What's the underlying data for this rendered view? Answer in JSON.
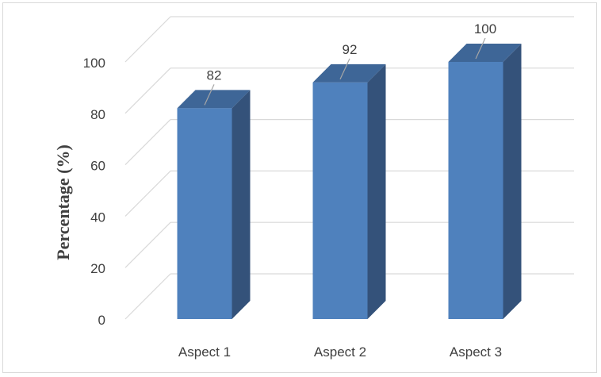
{
  "chart_data": {
    "type": "bar",
    "style": "3d-column",
    "categories": [
      "Aspect 1",
      "Aspect 2",
      "Aspect 3"
    ],
    "values": [
      82,
      92,
      100
    ],
    "data_labels": [
      "82",
      "92",
      "100"
    ],
    "ylabel": "Percentage (%)",
    "xlabel": "",
    "yticks": [
      "0",
      "20",
      "40",
      "60",
      "80",
      "100"
    ],
    "ylim": [
      0,
      100
    ],
    "grid": true,
    "legend": "none",
    "colors": {
      "bar_front": "#4f81bd",
      "bar_side": "#34527a",
      "bar_top": "#3e6697",
      "grid": "#d9d9d9",
      "text": "#404040"
    }
  }
}
